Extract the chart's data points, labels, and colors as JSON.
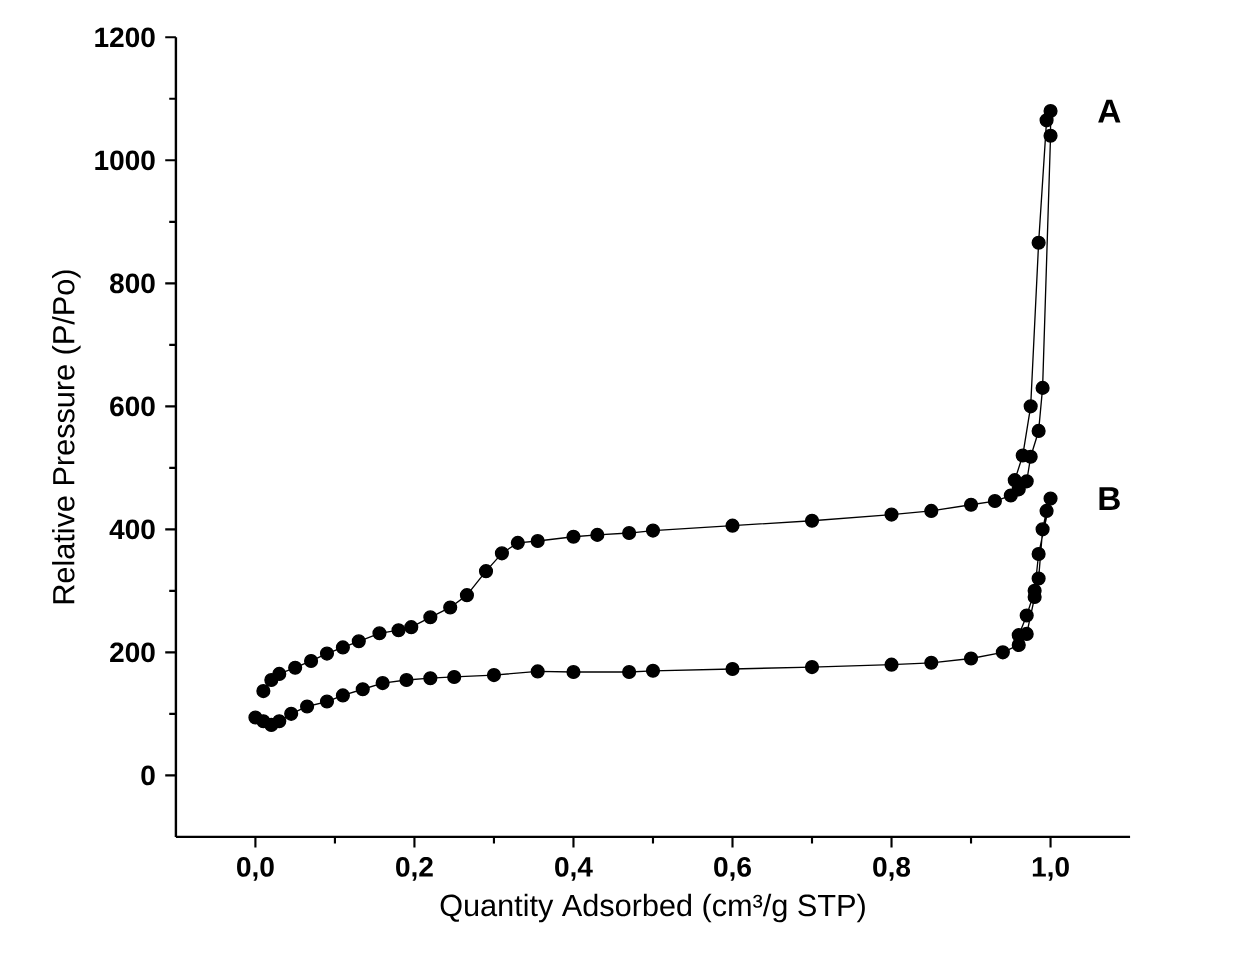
{
  "chart_data": {
    "type": "line",
    "xlabel": "Quantity Adsorbed (cm³/g STP)",
    "ylabel": "Relative Pressure (P/Po)",
    "xlim": [
      -0.1,
      1.1
    ],
    "ylim": [
      -100,
      1200
    ],
    "xticks": [
      {
        "value": 0,
        "label": "0,0"
      },
      {
        "value": 0.2,
        "label": "0,2"
      },
      {
        "value": 0.4,
        "label": "0,4"
      },
      {
        "value": 0.6,
        "label": "0,6"
      },
      {
        "value": 0.8,
        "label": "0,8"
      },
      {
        "value": 1.0,
        "label": "1,0"
      }
    ],
    "yticks": [
      0,
      200,
      400,
      600,
      800,
      1000,
      1200
    ],
    "marker": "circle",
    "line_style": "solid",
    "grid": false,
    "legend": false,
    "series": [
      {
        "name": "A",
        "color": "#000000",
        "x": [
          0.01,
          0.02,
          0.03,
          0.05,
          0.07,
          0.09,
          0.11,
          0.13,
          0.156,
          0.18,
          0.196,
          0.22,
          0.245,
          0.266,
          0.29,
          0.31,
          0.33,
          0.355,
          0.4,
          0.43,
          0.47,
          0.5,
          0.6,
          0.7,
          0.8,
          0.85,
          0.9,
          0.93,
          0.95,
          0.96,
          0.97,
          0.975,
          0.985,
          0.99,
          1.0,
          1.0,
          0.995,
          0.985,
          0.975,
          0.965,
          0.955
        ],
        "values": [
          137,
          155,
          165,
          175,
          186,
          198,
          208,
          218,
          231,
          236,
          241,
          257,
          273,
          293,
          332,
          361,
          378,
          381,
          388,
          391,
          394,
          398,
          406,
          414,
          424,
          430,
          440,
          446,
          455,
          465,
          478,
          518,
          560,
          630,
          1040,
          1080,
          1065,
          866,
          600,
          520,
          480
        ]
      },
      {
        "name": "B",
        "color": "#000000",
        "x": [
          0.0,
          0.01,
          0.02,
          0.03,
          0.045,
          0.065,
          0.09,
          0.11,
          0.135,
          0.16,
          0.19,
          0.22,
          0.25,
          0.3,
          0.355,
          0.4,
          0.47,
          0.5,
          0.6,
          0.7,
          0.8,
          0.85,
          0.9,
          0.94,
          0.96,
          0.97,
          0.98,
          0.985,
          0.99,
          0.995,
          1.0,
          0.985,
          0.98,
          0.97,
          0.96
        ],
        "values": [
          94,
          88,
          82,
          88,
          100,
          112,
          120,
          130,
          140,
          150,
          155,
          158,
          160,
          163,
          169,
          168,
          168,
          170,
          173,
          176,
          180,
          183,
          190,
          200,
          212,
          230,
          290,
          320,
          400,
          430,
          450,
          360,
          300,
          260,
          228
        ]
      }
    ]
  }
}
